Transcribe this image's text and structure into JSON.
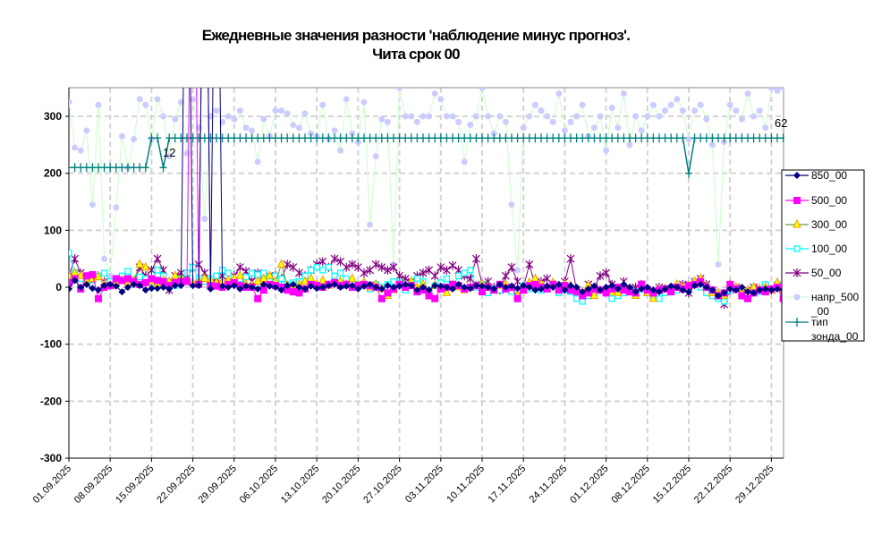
{
  "chart_data": {
    "type": "line",
    "title": "Ежедневные значения разности 'наблюдение минус прогноз'.",
    "subtitle": "Чита     срок 00",
    "xlabel": "",
    "ylabel": "",
    "ylim": [
      -300,
      350
    ],
    "yticks": [
      -300,
      -200,
      -100,
      0,
      100,
      200,
      300
    ],
    "x_start": "01.09.2025",
    "x_end": "31.12.2025",
    "xticks": [
      "01.09.2025",
      "08.09.2025",
      "15.09.2025",
      "22.09.2025",
      "29.09.2025",
      "06.10.2025",
      "13.10.2025",
      "20.10.2025",
      "27.10.2025",
      "03.11.2025",
      "10.11.2025",
      "17.11.2025",
      "24.11.2025",
      "01.12.2025",
      "08.12.2025",
      "15.12.2025",
      "22.12.2025",
      "29.12.2025"
    ],
    "grid": true,
    "legend_position": "right",
    "annotations": [
      {
        "text": "12",
        "date": "17.09.2025",
        "y": 262
      },
      {
        "text": "62",
        "date": "31.12.2025",
        "y": 290
      }
    ],
    "series": [
      {
        "name": "850_00",
        "color": "#000080",
        "marker": "diamond",
        "values": [
          -3,
          12,
          0,
          5,
          -2,
          -5,
          3,
          5,
          2,
          -8,
          0,
          5,
          3,
          -5,
          -2,
          -2,
          0,
          -3,
          3,
          3,
          900,
          3,
          3,
          900,
          -3,
          900,
          2,
          0,
          3,
          -3,
          2,
          0,
          -3,
          5,
          2,
          0,
          -5,
          3,
          5,
          0,
          -3,
          2,
          -2,
          0,
          3,
          5,
          0,
          2,
          3,
          -3,
          2,
          5,
          0,
          -3,
          3,
          0,
          2,
          5,
          3,
          -5,
          0,
          -5,
          3,
          2,
          0,
          -3,
          5,
          0,
          -2,
          3,
          2,
          0,
          -3,
          5,
          0,
          2,
          -2,
          3,
          0,
          -5,
          -3,
          2,
          0,
          5,
          -5,
          3,
          0,
          -8,
          -3,
          2,
          -5,
          0,
          3,
          -3,
          5,
          0,
          -8,
          -3,
          0,
          -5,
          -8,
          -3,
          2,
          0,
          -5,
          -8,
          3,
          5,
          0,
          -5,
          -15,
          -10,
          -3,
          -5,
          0,
          -8,
          -10,
          -5,
          -3,
          -5,
          -3,
          -5
        ]
      },
      {
        "name": "500_00",
        "color": "#ff00ff",
        "marker": "square",
        "values": [
          8,
          15,
          -3,
          20,
          22,
          -20,
          0,
          3,
          15,
          12,
          15,
          10,
          5,
          8,
          15,
          12,
          10,
          3,
          8,
          10,
          10,
          900,
          5,
          900,
          3,
          2,
          0,
          5,
          8,
          3,
          0,
          0,
          -20,
          -5,
          5,
          3,
          0,
          -5,
          -8,
          -10,
          -3,
          5,
          3,
          0,
          5,
          8,
          3,
          5,
          0,
          3,
          5,
          3,
          0,
          -20,
          -10,
          -3,
          5,
          0,
          3,
          -8,
          -5,
          -15,
          -20,
          -3,
          0,
          5,
          3,
          -3,
          0,
          3,
          -8,
          0,
          -5,
          5,
          -3,
          0,
          -20,
          -5,
          3,
          5,
          0,
          -3,
          5,
          -5,
          3,
          -5,
          -8,
          -15,
          -10,
          -3,
          -5,
          -10,
          -3,
          0,
          -5,
          -8,
          -10,
          5,
          -5,
          -10,
          -5,
          -3,
          -8,
          0,
          -3,
          3,
          5,
          10,
          0,
          -5,
          -15,
          -10,
          5,
          -3,
          -15,
          -20,
          -10,
          -5,
          -8,
          -3,
          0,
          -20
        ]
      },
      {
        "name": "300_00",
        "color": "#6b9e3a",
        "marker": "triangle",
        "values": [
          20,
          25,
          20,
          10,
          15,
          18,
          5,
          3,
          10,
          12,
          8,
          12,
          40,
          35,
          10,
          5,
          12,
          10,
          20,
          15,
          10,
          8,
          10,
          15,
          12,
          8,
          10,
          12,
          15,
          20,
          5,
          3,
          10,
          15,
          20,
          10,
          40,
          3,
          0,
          5,
          10,
          15,
          5,
          12,
          3,
          8,
          10,
          5,
          15,
          3,
          8,
          0,
          5,
          -3,
          -15,
          -5,
          5,
          3,
          10,
          0,
          5,
          -10,
          3,
          -3,
          -10,
          5,
          0,
          -5,
          0,
          3,
          5,
          0,
          -5,
          3,
          5,
          0,
          -15,
          -3,
          8,
          15,
          5,
          -3,
          8,
          0,
          5,
          3,
          -5,
          -10,
          3,
          -15,
          -5,
          -3,
          -8,
          -10,
          0,
          -5,
          -15,
          0,
          -10,
          -20,
          -5,
          -3,
          -8,
          5,
          0,
          3,
          10,
          15,
          0,
          -10,
          -10,
          -15,
          5,
          0,
          -10,
          -5,
          0,
          -3,
          0,
          -5,
          8,
          -5
        ]
      },
      {
        "name": "100_00",
        "color": "#00ffff",
        "marker": "open-square",
        "values": [
          60,
          25,
          15,
          10,
          3,
          20,
          25,
          10,
          15,
          20,
          28,
          10,
          18,
          15,
          8,
          30,
          20,
          10,
          3,
          15,
          25,
          35,
          15,
          10,
          15,
          20,
          30,
          25,
          10,
          5,
          18,
          25,
          22,
          25,
          10,
          20,
          15,
          5,
          8,
          10,
          20,
          30,
          35,
          30,
          35,
          20,
          25,
          15,
          10,
          5,
          3,
          -3,
          5,
          0,
          5,
          10,
          8,
          -5,
          5,
          15,
          10,
          -5,
          3,
          8,
          15,
          0,
          20,
          25,
          30,
          0,
          5,
          -10,
          -3,
          -5,
          0,
          -8,
          -15,
          3,
          -3,
          5,
          -5,
          0,
          3,
          -10,
          -5,
          -8,
          -20,
          -25,
          -15,
          -10,
          -5,
          -8,
          -20,
          -15,
          -10,
          -5,
          -8,
          -3,
          -10,
          -15,
          -20,
          -10,
          -8,
          -5,
          -3,
          -5,
          8,
          0,
          -10,
          -15,
          -20,
          -25,
          -5,
          -3,
          -15,
          -10,
          -5,
          -8,
          5,
          -3,
          3,
          -10
        ]
      },
      {
        "name": "50_00",
        "color": "#800080",
        "marker": "asterisk",
        "values": [
          20,
          50,
          25,
          15,
          5,
          20,
          10,
          3,
          8,
          15,
          12,
          8,
          35,
          20,
          30,
          50,
          30,
          -5,
          20,
          25,
          15,
          35,
          40,
          25,
          10,
          15,
          20,
          10,
          20,
          35,
          28,
          10,
          25,
          10,
          20,
          20,
          15,
          40,
          35,
          25,
          20,
          30,
          40,
          45,
          35,
          50,
          45,
          35,
          40,
          35,
          25,
          30,
          40,
          35,
          30,
          35,
          20,
          15,
          10,
          20,
          25,
          30,
          20,
          35,
          30,
          38,
          30,
          20,
          15,
          50,
          5,
          10,
          0,
          -5,
          20,
          35,
          10,
          0,
          40,
          3,
          10,
          15,
          5,
          0,
          10,
          50,
          -5,
          -10,
          5,
          0,
          20,
          25,
          5,
          -8,
          10,
          -3,
          0,
          5,
          -5,
          -10,
          0,
          -5,
          -3,
          0,
          5,
          -10,
          10,
          15,
          5,
          -10,
          -15,
          -30,
          -5,
          0,
          -10,
          -5,
          0,
          -3,
          0,
          -5,
          3,
          -5
        ]
      },
      {
        "name": "напр_500_00",
        "color": "#ccffcc",
        "marker_color": "#ccccff",
        "marker": "circle",
        "values": [
          325,
          245,
          240,
          275,
          145,
          320,
          50,
          20,
          140,
          265,
          210,
          260,
          330,
          320,
          260,
          330,
          300,
          230,
          295,
          325,
          235,
          330,
          280,
          120,
          300,
          310,
          290,
          300,
          295,
          310,
          280,
          275,
          220,
          295,
          265,
          310,
          310,
          305,
          285,
          280,
          305,
          270,
          265,
          320,
          260,
          275,
          240,
          330,
          270,
          255,
          325,
          110,
          230,
          295,
          290,
          40,
          350,
          300,
          300,
          290,
          300,
          300,
          340,
          330,
          300,
          300,
          290,
          220,
          285,
          300,
          350,
          300,
          270,
          300,
          290,
          145,
          30,
          280,
          300,
          320,
          310,
          300,
          290,
          340,
          275,
          290,
          300,
          320,
          265,
          280,
          300,
          240,
          315,
          280,
          340,
          250,
          300,
          275,
          300,
          320,
          300,
          310,
          320,
          330,
          310,
          260,
          310,
          320,
          295,
          250,
          40,
          255,
          320,
          310,
          295,
          340,
          300,
          310,
          280,
          350,
          345,
          350
        ]
      },
      {
        "name": "тип зонда_00",
        "color": "#008080",
        "marker": "plus",
        "values": [
          210,
          210,
          210,
          210,
          210,
          210,
          210,
          210,
          210,
          210,
          210,
          210,
          210,
          210,
          262,
          262,
          210,
          262,
          262,
          262,
          262,
          262,
          262,
          262,
          262,
          262,
          262,
          262,
          262,
          262,
          262,
          262,
          262,
          262,
          262,
          262,
          262,
          262,
          262,
          262,
          262,
          262,
          262,
          262,
          262,
          262,
          262,
          262,
          262,
          262,
          262,
          262,
          262,
          262,
          262,
          262,
          262,
          262,
          262,
          262,
          262,
          262,
          262,
          262,
          262,
          262,
          262,
          262,
          262,
          262,
          262,
          262,
          262,
          262,
          262,
          262,
          262,
          262,
          262,
          262,
          262,
          262,
          262,
          262,
          262,
          262,
          262,
          262,
          262,
          262,
          262,
          262,
          262,
          262,
          262,
          262,
          262,
          262,
          262,
          262,
          262,
          262,
          262,
          262,
          262,
          200,
          262,
          262,
          262,
          262,
          262,
          262,
          262,
          262,
          262,
          262,
          262,
          262,
          262,
          262,
          262,
          262
        ]
      }
    ],
    "legend": [
      "850_00",
      "500_00",
      "300_00",
      "100_00",
      "50_00",
      "напр_500\n_00",
      "тип\nзонда_00"
    ]
  }
}
